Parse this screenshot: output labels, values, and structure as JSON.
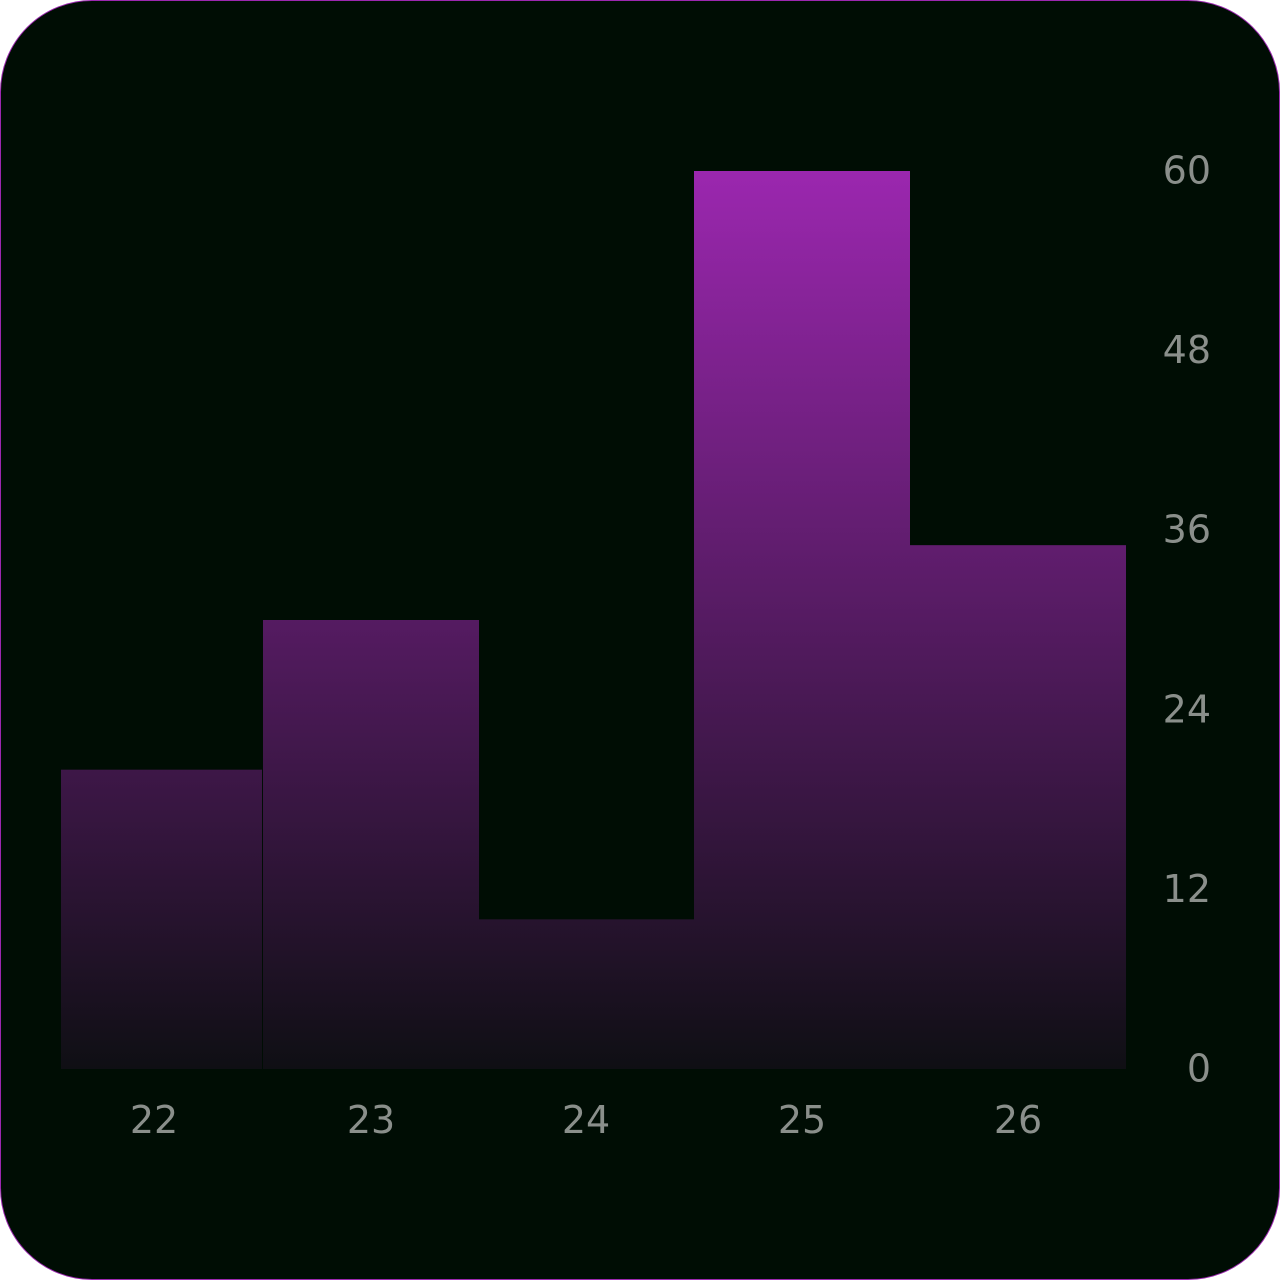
{
  "chart_data": {
    "type": "bar",
    "categories": [
      "22",
      "23",
      "24",
      "25",
      "26"
    ],
    "values": [
      20,
      30,
      10,
      60,
      35
    ],
    "ylim": [
      0,
      60
    ],
    "y_ticks": [
      "0",
      "12",
      "24",
      "36",
      "48",
      "60"
    ],
    "y_axis_position": "right",
    "grid": false,
    "legend": "none",
    "colors": {
      "background": "#000d04",
      "border": "#9b27af",
      "bar_top": "#9b27af",
      "bar_bottom": "#0f0f14",
      "tick_text": "#8a8f8b"
    }
  }
}
